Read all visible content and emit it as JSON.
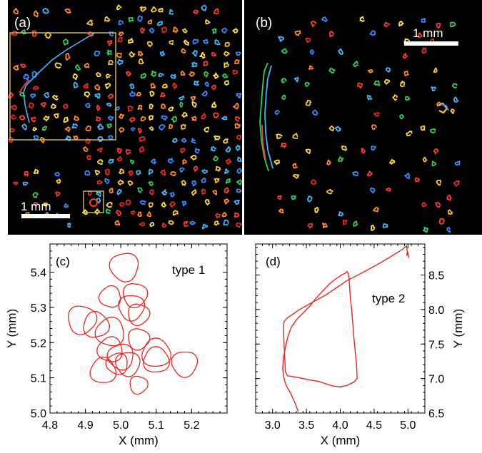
{
  "figure": {
    "panel_a": {
      "label": "(a)",
      "scale_text": "1 mm"
    },
    "panel_b": {
      "label": "(b)",
      "scale_text": "1 mm"
    },
    "panel_c": {
      "label": "(c)",
      "annotation": "type 1"
    },
    "panel_d": {
      "label": "(d)",
      "annotation": "type 2"
    }
  },
  "colors": {
    "trajectory": "#e8281e",
    "inset_box": "#d4c44a",
    "background": "#000000"
  },
  "chart_data": [
    {
      "panel": "(c)",
      "type": "line",
      "title": "",
      "annotation": "type 1",
      "xlabel": "X (mm)",
      "ylabel": "Y (mm)",
      "xlim": [
        4.8,
        5.3
      ],
      "ylim": [
        5.0,
        5.48
      ],
      "xticks": [
        4.8,
        4.9,
        5.0,
        5.1,
        5.2
      ],
      "yticks": [
        5.0,
        5.1,
        5.2,
        5.3,
        5.4
      ],
      "xtick_labels": [
        "4.8",
        "4.9",
        "5.0",
        "5.1",
        "5.2"
      ],
      "ytick_labels": [
        "5.0",
        "5.1",
        "5.2",
        "5.3",
        "5.4"
      ],
      "y_axis_side": "left",
      "series": [
        {
          "loops": [
            {
              "cx": 5.01,
              "cy": 5.415,
              "rx": 0.04,
              "ry": 0.04
            },
            {
              "cx": 5.04,
              "cy": 5.335,
              "rx": 0.034,
              "ry": 0.034
            },
            {
              "cx": 5.03,
              "cy": 5.3,
              "rx": 0.036,
              "ry": 0.036
            },
            {
              "cx": 5.05,
              "cy": 5.28,
              "rx": 0.03,
              "ry": 0.03
            },
            {
              "cx": 4.97,
              "cy": 5.33,
              "rx": 0.03,
              "ry": 0.03
            },
            {
              "cx": 4.89,
              "cy": 5.265,
              "rx": 0.04,
              "ry": 0.04
            },
            {
              "cx": 4.93,
              "cy": 5.25,
              "rx": 0.036,
              "ry": 0.036
            },
            {
              "cx": 4.97,
              "cy": 5.23,
              "rx": 0.04,
              "ry": 0.04
            },
            {
              "cx": 5.05,
              "cy": 5.21,
              "rx": 0.03,
              "ry": 0.03
            },
            {
              "cx": 4.97,
              "cy": 5.18,
              "rx": 0.035,
              "ry": 0.035
            },
            {
              "cx": 5.0,
              "cy": 5.16,
              "rx": 0.036,
              "ry": 0.036
            },
            {
              "cx": 5.02,
              "cy": 5.14,
              "rx": 0.034,
              "ry": 0.034
            },
            {
              "cx": 4.99,
              "cy": 5.14,
              "rx": 0.03,
              "ry": 0.03
            },
            {
              "cx": 4.95,
              "cy": 5.12,
              "rx": 0.036,
              "ry": 0.036
            },
            {
              "cx": 5.1,
              "cy": 5.17,
              "rx": 0.04,
              "ry": 0.04
            },
            {
              "cx": 5.1,
              "cy": 5.15,
              "rx": 0.036,
              "ry": 0.036
            },
            {
              "cx": 5.18,
              "cy": 5.14,
              "rx": 0.036,
              "ry": 0.036
            },
            {
              "cx": 5.05,
              "cy": 5.08,
              "rx": 0.025,
              "ry": 0.025
            }
          ]
        }
      ]
    },
    {
      "panel": "(d)",
      "type": "line",
      "title": "",
      "annotation": "type 2",
      "xlabel": "X (mm)",
      "ylabel": "Y (mm)",
      "xlim": [
        2.75,
        5.25
      ],
      "ylim": [
        6.5,
        8.95
      ],
      "xticks": [
        3.0,
        3.5,
        4.0,
        4.5,
        5.0
      ],
      "yticks": [
        6.5,
        7.0,
        7.5,
        8.0,
        8.5
      ],
      "xtick_labels": [
        "3.0",
        "3.5",
        "4.0",
        "4.5",
        "5.0"
      ],
      "ytick_labels": [
        "6.5",
        "7.0",
        "7.5",
        "8.0",
        "8.5"
      ],
      "y_axis_side": "right",
      "series": [
        {
          "x": [
            3.38,
            3.33,
            3.26,
            3.2,
            3.17,
            3.16,
            3.15,
            3.16,
            3.18,
            3.2,
            3.23,
            3.28,
            3.35,
            3.45,
            3.55,
            3.63,
            3.75,
            3.85,
            3.93,
            4.02,
            4.08,
            4.1,
            4.12,
            4.13,
            4.14,
            4.15,
            4.17,
            4.18,
            4.2,
            4.22,
            4.24,
            4.25,
            4.2,
            4.1,
            4.0,
            3.9,
            3.8,
            3.68,
            3.55,
            3.45,
            3.35,
            3.28,
            3.22,
            3.19,
            3.18,
            3.17,
            3.16,
            3.17,
            3.22,
            3.4,
            3.8,
            4.1,
            4.28,
            4.6,
            4.9,
            4.98,
            4.99,
            4.98,
            5.0,
            5.01
          ],
          "y": [
            6.52,
            6.65,
            6.8,
            6.9,
            7.0,
            7.05,
            7.15,
            7.3,
            7.4,
            7.5,
            7.62,
            7.75,
            7.85,
            7.95,
            8.05,
            8.15,
            8.28,
            8.38,
            8.44,
            8.5,
            8.53,
            8.55,
            8.52,
            8.45,
            8.3,
            8.15,
            8.0,
            7.85,
            7.6,
            7.4,
            7.2,
            7.0,
            6.95,
            6.9,
            6.88,
            6.89,
            6.92,
            6.96,
            6.98,
            7.0,
            7.02,
            7.03,
            7.04,
            7.1,
            7.3,
            7.5,
            7.75,
            7.83,
            7.88,
            8.0,
            8.22,
            8.42,
            8.51,
            8.68,
            8.86,
            8.92,
            8.84,
            8.78,
            8.82,
            8.75
          ]
        }
      ]
    }
  ]
}
